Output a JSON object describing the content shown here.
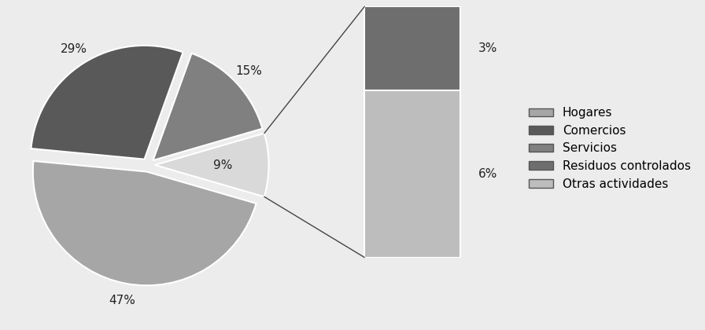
{
  "chart_data": {
    "type": "pie",
    "categories": [
      "Hogares",
      "Comercios",
      "Servicios"
    ],
    "values": [
      47,
      29,
      15
    ],
    "value_labels": [
      "47%",
      "29%",
      "15%"
    ],
    "colors": [
      "#a6a6a6",
      "#595959",
      "#808080"
    ],
    "data_labels": true,
    "legend": "center right",
    "breakdown": {
      "type": "bar",
      "stacked": true,
      "value": 9,
      "value_label": "9%",
      "color": "#d9d9d9",
      "categories": [
        "Residuos controlados",
        "Otras actividades"
      ],
      "values": [
        3,
        6
      ],
      "value_labels": [
        "3%",
        "6%"
      ],
      "colors": [
        "#6e6e6e",
        "#bdbdbd"
      ],
      "data_labels": true
    }
  }
}
